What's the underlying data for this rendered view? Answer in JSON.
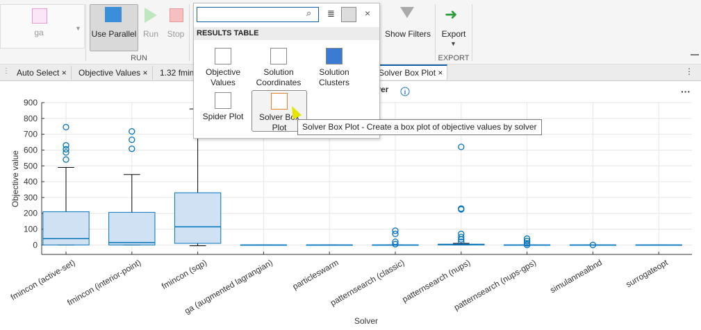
{
  "toolbar": {
    "gallery_item": "ga",
    "use_parallel": "Use Parallel",
    "run": "Run",
    "stop": "Stop",
    "run_section": "RUN",
    "show_filters": "Show Filters",
    "export": "Export",
    "export_section": "EXPORT"
  },
  "tabs": [
    "Auto Select",
    "Objective Values",
    "1.32 fmin",
    "Solver Box Plot"
  ],
  "popup": {
    "header": "RESULTS TABLE",
    "items": [
      "Objective Values",
      "Solution Coordinates",
      "Solution Clusters",
      "Spider Plot",
      "Solver Box Plot"
    ]
  },
  "tooltip": "Solver Box Plot - Create a box plot of objective values by solver",
  "chart_data": {
    "type": "box",
    "title": "lver",
    "xlabel": "Solver",
    "ylabel": "Objective value",
    "categories": [
      "fmincon (active-set)",
      "fmincon (interior-point)",
      "fmincon (sqp)",
      "ga (augmented lagrangian)",
      "particleswarm",
      "patternsearch (classic)",
      "patternsearch (nups)",
      "patternsearch (nups-gps)",
      "simulannealbnd",
      "surrogateopt"
    ],
    "whisker_low": [
      0,
      0,
      -5,
      0,
      0,
      0,
      0,
      0,
      0,
      0
    ],
    "q1": [
      0,
      0,
      10,
      0,
      0,
      0,
      0,
      0,
      0,
      0
    ],
    "median": [
      40,
      15,
      115,
      0,
      0,
      0,
      2,
      0,
      0,
      0
    ],
    "q3": [
      210,
      206,
      330,
      0,
      0,
      0,
      5,
      0,
      0,
      0
    ],
    "whisker_high": [
      490,
      445,
      860,
      0,
      0,
      0,
      10,
      0,
      0,
      0
    ],
    "outliers": [
      [
        745,
        630,
        605,
        585,
        540
      ],
      [
        718,
        665,
        608
      ],
      [],
      [],
      [],
      [
        90,
        70,
        20,
        5
      ],
      [
        620,
        230,
        225,
        70,
        50,
        35,
        20
      ],
      [
        40,
        25,
        10,
        0
      ],
      [
        0
      ],
      []
    ],
    "color": "#0072bd",
    "ylim": [
      -60,
      900
    ],
    "yticks": [
      0,
      100,
      200,
      300,
      400,
      500,
      600,
      700,
      800,
      900
    ],
    "grid": true
  }
}
